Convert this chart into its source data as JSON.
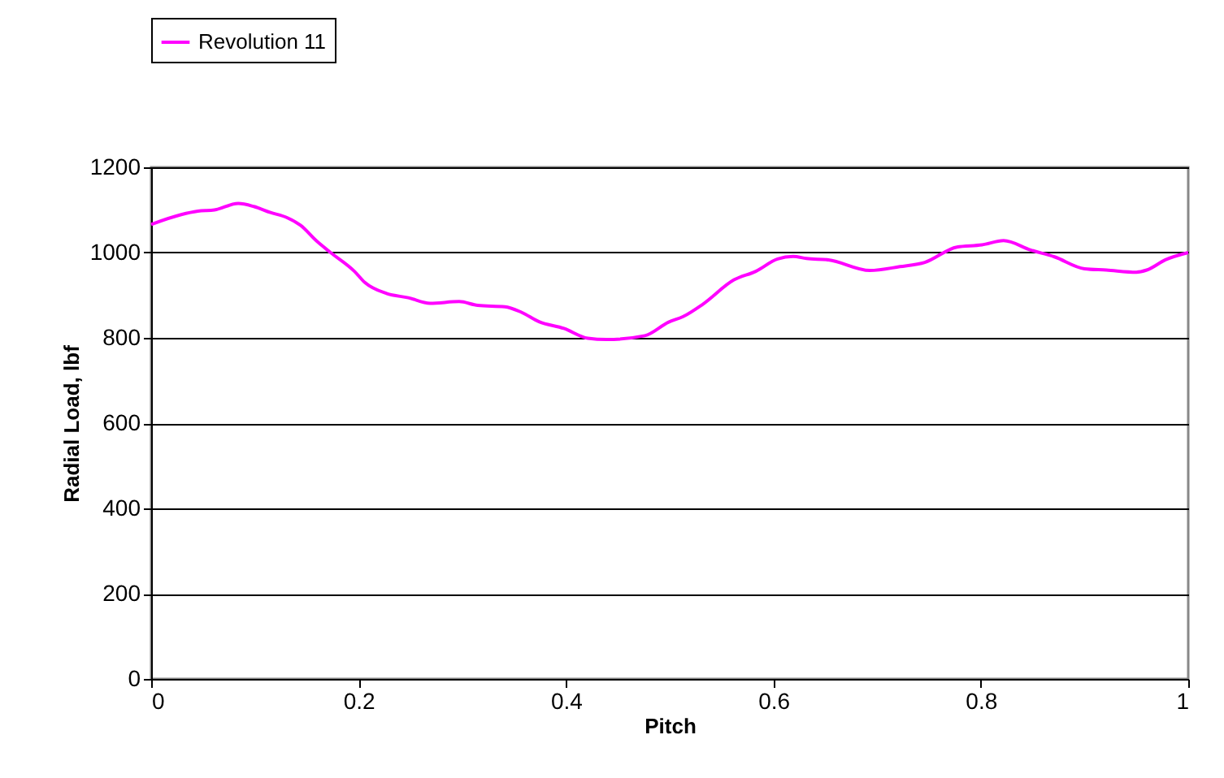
{
  "chart_data": {
    "type": "line",
    "xlabel": "Pitch",
    "ylabel": "Radial Load, lbf",
    "xlim": [
      0,
      1
    ],
    "xticks": [
      0,
      0.2,
      0.4,
      0.6,
      0.8,
      1
    ],
    "ylim": [
      0,
      1200
    ],
    "yticks": [
      0,
      200,
      400,
      600,
      800,
      1000,
      1200
    ],
    "grid": "y",
    "legend": "top",
    "marker": "none",
    "line_style": "solid",
    "series": [
      {
        "name": "Revolution 11",
        "color": "#ff00ff",
        "x": [
          0,
          0.029,
          0.045,
          0.061,
          0.084,
          0.099,
          0.115,
          0.131,
          0.144,
          0.16,
          0.173,
          0.196,
          0.206,
          0.227,
          0.248,
          0.269,
          0.297,
          0.315,
          0.341,
          0.357,
          0.374,
          0.398,
          0.421,
          0.439,
          0.476,
          0.499,
          0.513,
          0.532,
          0.562,
          0.583,
          0.604,
          0.619,
          0.632,
          0.653,
          0.693,
          0.722,
          0.746,
          0.777,
          0.801,
          0.822,
          0.848,
          0.871,
          0.9,
          0.921,
          0.95,
          0.96,
          0.978,
          1
        ],
        "values": [
          1066,
          1089,
          1097,
          1100,
          1115,
          1108,
          1094,
          1082,
          1064,
          1026,
          1000,
          956,
          930,
          904,
          894,
          881,
          885,
          876,
          873,
          860,
          838,
          822,
          799,
          796,
          805,
          837,
          850,
          879,
          936,
          956,
          985,
          991,
          986,
          983,
          958,
          967,
          977,
          1013,
          1018,
          1028,
          1006,
          990,
          962,
          959,
          954,
          959,
          983,
          1000
        ]
      }
    ]
  }
}
